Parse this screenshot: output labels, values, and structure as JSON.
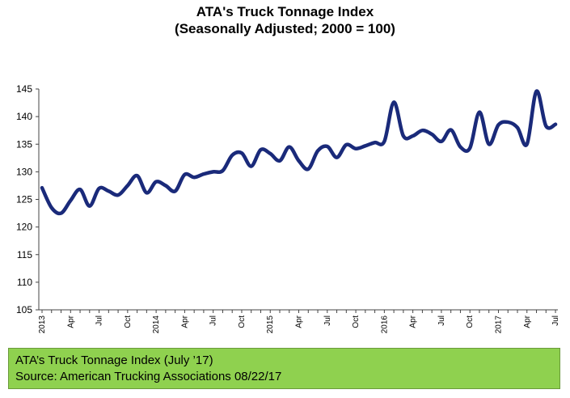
{
  "caption": {
    "line1": "ATA’s Truck Tonnage Index (July ’17)",
    "line2": "Source: American Trucking Associations 08/22/17"
  },
  "colors": {
    "line": "#1a2a7a",
    "caption_background": "#8fd14f"
  },
  "chart_data": {
    "type": "line",
    "title": "ATA's Truck Tonnage Index",
    "subtitle": "(Seasonally Adjusted; 2000 = 100)",
    "xlabel": "",
    "ylabel": "",
    "ylim": [
      105,
      145
    ],
    "yticks": [
      105,
      110,
      115,
      120,
      125,
      130,
      135,
      140,
      145
    ],
    "grid": false,
    "legend": "none",
    "x": [
      "2013-01",
      "2013-02",
      "2013-03",
      "2013-04",
      "2013-05",
      "2013-06",
      "2013-07",
      "2013-08",
      "2013-09",
      "2013-10",
      "2013-11",
      "2013-12",
      "2014-01",
      "2014-02",
      "2014-03",
      "2014-04",
      "2014-05",
      "2014-06",
      "2014-07",
      "2014-08",
      "2014-09",
      "2014-10",
      "2014-11",
      "2014-12",
      "2015-01",
      "2015-02",
      "2015-03",
      "2015-04",
      "2015-05",
      "2015-06",
      "2015-07",
      "2015-08",
      "2015-09",
      "2015-10",
      "2015-11",
      "2015-12",
      "2016-01",
      "2016-02",
      "2016-03",
      "2016-04",
      "2016-05",
      "2016-06",
      "2016-07",
      "2016-08",
      "2016-09",
      "2016-10",
      "2016-11",
      "2016-12",
      "2017-01",
      "2017-02",
      "2017-03",
      "2017-04",
      "2017-05",
      "2017-06",
      "2017-07"
    ],
    "xtick_labels": [
      "2013",
      "Apr",
      "Jul",
      "Oct",
      "2014",
      "Apr",
      "Jul",
      "Oct",
      "2015",
      "Apr",
      "Jul",
      "Oct",
      "2016",
      "Apr",
      "Jul",
      "Oct",
      "2017",
      "Apr",
      "Jul"
    ],
    "series": [
      {
        "values": [
          127.1,
          123.5,
          122.5,
          124.8,
          126.8,
          123.8,
          127.0,
          126.5,
          125.8,
          127.5,
          129.3,
          126.2,
          128.2,
          127.5,
          126.5,
          129.5,
          129.0,
          129.6,
          130.0,
          130.2,
          133.0,
          133.4,
          131.0,
          134.0,
          133.3,
          132.0,
          134.5,
          132.0,
          130.5,
          133.8,
          134.6,
          132.6,
          134.9,
          134.2,
          134.7,
          135.3,
          135.5,
          142.6,
          136.5,
          136.5,
          137.5,
          136.8,
          135.5,
          137.6,
          134.5,
          134.3,
          140.8,
          135.0,
          138.5,
          139.0,
          138.0,
          135.0,
          144.6,
          138.3,
          138.6
        ]
      }
    ]
  }
}
